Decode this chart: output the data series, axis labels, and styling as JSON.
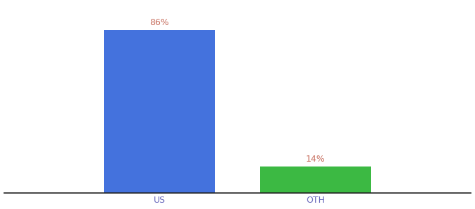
{
  "categories": [
    "US",
    "OTH"
  ],
  "values": [
    86,
    14
  ],
  "bar_colors": [
    "#4472dd",
    "#3cb943"
  ],
  "label_color": "#c87060",
  "bar_width": 0.5,
  "background_color": "#ffffff",
  "ylim": [
    0,
    100
  ],
  "xlim": [
    -0.3,
    1.8
  ],
  "label_fontsize": 9,
  "tick_fontsize": 9,
  "tick_color": "#6666bb",
  "spine_color": "#222222"
}
